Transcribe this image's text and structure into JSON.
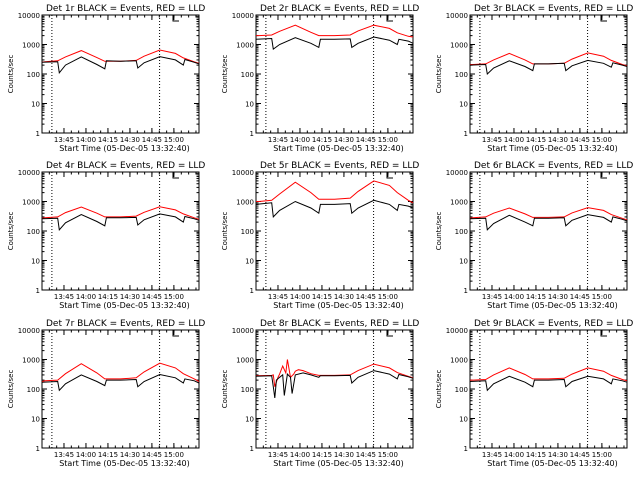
{
  "chart_data": [
    {
      "type": "line",
      "title": "Det 1r BLACK = Events, RED = LLD",
      "xlabel": "Start Time (05-Dec-05 13:32:40)",
      "ylabel": "Counts/sec",
      "x_ticks": [
        "13:45",
        "14:00",
        "14:15",
        "14:30",
        "14:45",
        "15:00"
      ],
      "y_ticks": [
        "1",
        "10",
        "100",
        "1000",
        "10000"
      ],
      "y_scale": "log",
      "ylim": [
        1,
        10000
      ],
      "series": [
        {
          "color": "#ff0000",
          "x": [
            0,
            2,
            10,
            15,
            25,
            35,
            40,
            50,
            60,
            65,
            75,
            85,
            90,
            97,
            100
          ],
          "y": [
            250,
            260,
            280,
            380,
            620,
            360,
            270,
            270,
            290,
            400,
            650,
            500,
            350,
            260,
            230
          ]
        },
        {
          "color": "#000000",
          "x": [
            0,
            10,
            11,
            15,
            25,
            35,
            40,
            41,
            50,
            60,
            61,
            65,
            75,
            85,
            90,
            91,
            97,
            100
          ],
          "y": [
            250,
            260,
            110,
            200,
            380,
            210,
            150,
            280,
            270,
            280,
            160,
            240,
            390,
            300,
            200,
            310,
            250,
            220
          ]
        }
      ]
    },
    {
      "type": "line",
      "title": "Det 2r BLACK = Events, RED = LLD",
      "xlabel": "Start Time (05-Dec-05 13:32:40)",
      "ylabel": "Counts/sec",
      "x_ticks": [
        "13:45",
        "14:00",
        "14:15",
        "14:30",
        "14:45",
        "15:00"
      ],
      "y_ticks": [
        "1",
        "10",
        "100",
        "1000",
        "10000"
      ],
      "y_scale": "log",
      "ylim": [
        1,
        10000
      ],
      "series": [
        {
          "color": "#ff0000",
          "x": [
            0,
            2,
            10,
            15,
            25,
            35,
            40,
            50,
            60,
            65,
            75,
            85,
            90,
            97,
            100
          ],
          "y": [
            2000,
            2000,
            2100,
            2800,
            4500,
            2600,
            2000,
            2000,
            2100,
            2900,
            4500,
            3500,
            2500,
            1900,
            1800
          ]
        },
        {
          "color": "#000000",
          "x": [
            0,
            10,
            11,
            15,
            25,
            35,
            40,
            41,
            50,
            60,
            61,
            65,
            75,
            85,
            90,
            91,
            97,
            100
          ],
          "y": [
            1500,
            1600,
            700,
            1000,
            1700,
            1100,
            800,
            1500,
            1500,
            1550,
            800,
            1100,
            1800,
            1400,
            1000,
            1500,
            1300,
            1100
          ]
        }
      ]
    },
    {
      "type": "line",
      "title": "Det 3r BLACK = Events, RED = LLD",
      "xlabel": "Start Time (05-Dec-05 13:32:40)",
      "ylabel": "Counts/sec",
      "x_ticks": [
        "13:45",
        "14:00",
        "14:15",
        "14:30",
        "14:45",
        "15:00"
      ],
      "y_ticks": [
        "1",
        "10",
        "100",
        "1000",
        "10000"
      ],
      "y_scale": "log",
      "ylim": [
        1,
        10000
      ],
      "series": [
        {
          "color": "#ff0000",
          "x": [
            0,
            2,
            10,
            15,
            25,
            35,
            40,
            50,
            60,
            65,
            75,
            85,
            90,
            97,
            100
          ],
          "y": [
            210,
            210,
            220,
            300,
            500,
            300,
            220,
            220,
            230,
            320,
            520,
            400,
            290,
            210,
            190
          ]
        },
        {
          "color": "#000000",
          "x": [
            0,
            10,
            11,
            15,
            25,
            35,
            40,
            41,
            50,
            60,
            61,
            65,
            75,
            85,
            90,
            91,
            97,
            100
          ],
          "y": [
            200,
            210,
            100,
            160,
            280,
            180,
            130,
            220,
            220,
            230,
            130,
            190,
            290,
            230,
            170,
            240,
            200,
            180
          ]
        }
      ]
    },
    {
      "type": "line",
      "title": "Det 4r BLACK = Events, RED = LLD",
      "xlabel": "Start Time (05-Dec-05 13:32:40)",
      "ylabel": "Counts/sec",
      "x_ticks": [
        "13:45",
        "14:00",
        "14:15",
        "14:30",
        "14:45",
        "15:00"
      ],
      "y_ticks": [
        "1",
        "10",
        "100",
        "1000",
        "10000"
      ],
      "y_scale": "log",
      "ylim": [
        1,
        10000
      ],
      "series": [
        {
          "color": "#ff0000",
          "x": [
            0,
            2,
            10,
            15,
            25,
            35,
            40,
            50,
            60,
            65,
            75,
            85,
            90,
            97,
            100
          ],
          "y": [
            270,
            280,
            300,
            420,
            650,
            400,
            300,
            300,
            320,
            430,
            660,
            520,
            380,
            280,
            250
          ]
        },
        {
          "color": "#000000",
          "x": [
            0,
            10,
            11,
            15,
            25,
            35,
            40,
            41,
            50,
            60,
            61,
            65,
            75,
            85,
            90,
            91,
            97,
            100
          ],
          "y": [
            260,
            270,
            110,
            190,
            360,
            210,
            150,
            280,
            280,
            290,
            160,
            240,
            380,
            300,
            200,
            310,
            260,
            230
          ]
        }
      ]
    },
    {
      "type": "line",
      "title": "Det 5r BLACK = Events, RED = LLD",
      "xlabel": "Start Time (05-Dec-05 13:32:40)",
      "ylabel": "Counts/sec",
      "x_ticks": [
        "13:45",
        "14:00",
        "14:15",
        "14:30",
        "14:45",
        "15:00"
      ],
      "y_ticks": [
        "1",
        "10",
        "100",
        "1000",
        "10000"
      ],
      "y_scale": "log",
      "ylim": [
        1,
        10000
      ],
      "series": [
        {
          "color": "#ff0000",
          "x": [
            0,
            2,
            10,
            15,
            25,
            35,
            40,
            50,
            60,
            65,
            75,
            85,
            90,
            97,
            100
          ],
          "y": [
            1000,
            1000,
            1100,
            1800,
            4500,
            2000,
            1200,
            1200,
            1300,
            2200,
            5000,
            3500,
            2000,
            1100,
            900
          ]
        },
        {
          "color": "#000000",
          "x": [
            0,
            10,
            11,
            15,
            25,
            35,
            40,
            41,
            50,
            60,
            61,
            65,
            75,
            85,
            90,
            91,
            97,
            100
          ],
          "y": [
            800,
            900,
            300,
            500,
            1000,
            600,
            400,
            800,
            800,
            850,
            400,
            600,
            1100,
            800,
            500,
            800,
            700,
            600
          ]
        }
      ]
    },
    {
      "type": "line",
      "title": "Det 6r BLACK = Events, RED = LLD",
      "xlabel": "Start Time (05-Dec-05 13:32:40)",
      "ylabel": "Counts/sec",
      "x_ticks": [
        "13:45",
        "14:00",
        "14:15",
        "14:30",
        "14:45",
        "15:00"
      ],
      "y_ticks": [
        "1",
        "10",
        "100",
        "1000",
        "10000"
      ],
      "y_scale": "log",
      "ylim": [
        1,
        10000
      ],
      "series": [
        {
          "color": "#ff0000",
          "x": [
            0,
            2,
            10,
            15,
            25,
            35,
            40,
            50,
            60,
            65,
            75,
            85,
            90,
            97,
            100
          ],
          "y": [
            270,
            280,
            300,
            400,
            600,
            380,
            290,
            290,
            300,
            410,
            620,
            500,
            360,
            270,
            240
          ]
        },
        {
          "color": "#000000",
          "x": [
            0,
            10,
            11,
            15,
            25,
            35,
            40,
            41,
            50,
            60,
            61,
            65,
            75,
            85,
            90,
            91,
            97,
            100
          ],
          "y": [
            260,
            270,
            110,
            180,
            340,
            200,
            150,
            270,
            270,
            280,
            150,
            230,
            360,
            290,
            200,
            300,
            250,
            220
          ]
        }
      ]
    },
    {
      "type": "line",
      "title": "Det 7r BLACK = Events, RED = LLD",
      "xlabel": "Start Time (05-Dec-05 13:32:40)",
      "ylabel": "Counts/sec",
      "x_ticks": [
        "13:45",
        "14:00",
        "14:15",
        "14:30",
        "14:45",
        "15:00"
      ],
      "y_ticks": [
        "1",
        "10",
        "100",
        "1000",
        "10000"
      ],
      "y_scale": "log",
      "ylim": [
        1,
        10000
      ],
      "series": [
        {
          "color": "#ff0000",
          "x": [
            0,
            2,
            10,
            15,
            25,
            35,
            40,
            50,
            60,
            65,
            75,
            85,
            90,
            97,
            100
          ],
          "y": [
            180,
            190,
            200,
            330,
            720,
            350,
            220,
            220,
            240,
            380,
            750,
            520,
            330,
            220,
            180
          ]
        },
        {
          "color": "#000000",
          "x": [
            0,
            10,
            11,
            15,
            25,
            35,
            40,
            41,
            50,
            60,
            61,
            65,
            75,
            85,
            90,
            91,
            97,
            100
          ],
          "y": [
            170,
            180,
            90,
            150,
            300,
            180,
            130,
            200,
            200,
            210,
            120,
            180,
            310,
            240,
            160,
            220,
            190,
            160
          ]
        }
      ]
    },
    {
      "type": "line",
      "title": "Det 8r BLACK = Events, RED = LLD",
      "xlabel": "Start Time (05-Dec-05 13:32:40)",
      "ylabel": "Counts/sec",
      "x_ticks": [
        "13:45",
        "14:00",
        "14:15",
        "14:30",
        "14:45",
        "15:00"
      ],
      "y_ticks": [
        "1",
        "10",
        "100",
        "1000",
        "10000"
      ],
      "y_scale": "log",
      "ylim": [
        1,
        10000
      ],
      "series": [
        {
          "color": "#ff0000",
          "x": [
            0,
            10,
            11,
            12,
            14,
            15,
            17,
            19,
            20,
            22,
            24,
            25,
            27,
            30,
            35,
            40,
            50,
            60,
            65,
            75,
            85,
            90,
            97,
            100
          ],
          "y": [
            280,
            290,
            300,
            120,
            250,
            320,
            600,
            350,
            1000,
            250,
            320,
            400,
            450,
            420,
            330,
            290,
            290,
            300,
            420,
            700,
            520,
            360,
            270,
            240
          ]
        },
        {
          "color": "#000000",
          "x": [
            0,
            10,
            11,
            12,
            13,
            15,
            17,
            18,
            20,
            22,
            23,
            25,
            30,
            35,
            40,
            41,
            50,
            60,
            61,
            65,
            75,
            85,
            90,
            91,
            97,
            100
          ],
          "y": [
            270,
            280,
            120,
            50,
            200,
            250,
            300,
            60,
            320,
            250,
            70,
            300,
            350,
            300,
            250,
            280,
            280,
            290,
            160,
            250,
            420,
            320,
            220,
            310,
            260,
            230
          ]
        }
      ]
    },
    {
      "type": "line",
      "title": "Det 9r BLACK = Events, RED = LLD",
      "xlabel": "Start Time (05-Dec-05 13:32:40)",
      "ylabel": "Counts/sec",
      "x_ticks": [
        "13:45",
        "14:00",
        "14:15",
        "14:30",
        "14:45",
        "15:00"
      ],
      "y_ticks": [
        "1",
        "10",
        "100",
        "1000",
        "10000"
      ],
      "y_scale": "log",
      "ylim": [
        1,
        10000
      ],
      "series": [
        {
          "color": "#ff0000",
          "x": [
            0,
            2,
            10,
            15,
            25,
            35,
            40,
            50,
            60,
            65,
            75,
            85,
            90,
            97,
            100
          ],
          "y": [
            200,
            200,
            210,
            300,
            520,
            310,
            220,
            220,
            230,
            320,
            520,
            400,
            290,
            210,
            190
          ]
        },
        {
          "color": "#000000",
          "x": [
            0,
            10,
            11,
            15,
            25,
            35,
            40,
            41,
            50,
            60,
            61,
            65,
            75,
            85,
            90,
            91,
            97,
            100
          ],
          "y": [
            180,
            190,
            90,
            150,
            270,
            170,
            120,
            200,
            200,
            210,
            120,
            180,
            270,
            220,
            150,
            220,
            190,
            170
          ]
        }
      ]
    }
  ]
}
